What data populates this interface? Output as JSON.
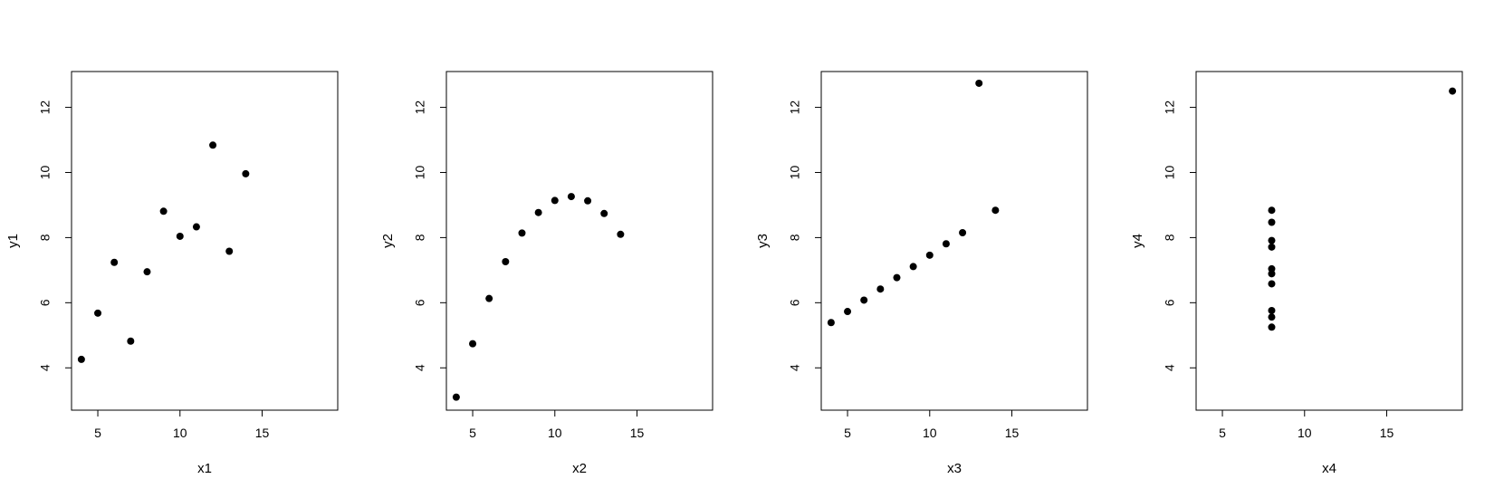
{
  "chart_data": [
    {
      "type": "scatter",
      "xlabel": "x1",
      "ylabel": "y1",
      "xlim": [
        3.4,
        19.6
      ],
      "ylim": [
        2.7,
        13.1
      ],
      "xticks": [
        5,
        10,
        15
      ],
      "yticks": [
        4,
        6,
        8,
        10,
        12
      ],
      "x": [
        10,
        8,
        13,
        9,
        11,
        14,
        6,
        4,
        12,
        7,
        5
      ],
      "y": [
        8.04,
        6.95,
        7.58,
        8.81,
        8.33,
        9.96,
        7.24,
        4.26,
        10.84,
        4.82,
        5.68
      ]
    },
    {
      "type": "scatter",
      "xlabel": "x2",
      "ylabel": "y2",
      "xlim": [
        3.4,
        19.6
      ],
      "ylim": [
        2.7,
        13.1
      ],
      "xticks": [
        5,
        10,
        15
      ],
      "yticks": [
        4,
        6,
        8,
        10,
        12
      ],
      "x": [
        10,
        8,
        13,
        9,
        11,
        14,
        6,
        4,
        12,
        7,
        5
      ],
      "y": [
        9.14,
        8.14,
        8.74,
        8.77,
        9.26,
        8.1,
        6.13,
        3.1,
        9.13,
        7.26,
        4.74
      ]
    },
    {
      "type": "scatter",
      "xlabel": "x3",
      "ylabel": "y3",
      "xlim": [
        3.4,
        19.6
      ],
      "ylim": [
        2.7,
        13.1
      ],
      "xticks": [
        5,
        10,
        15
      ],
      "yticks": [
        4,
        6,
        8,
        10,
        12
      ],
      "x": [
        10,
        8,
        13,
        9,
        11,
        14,
        6,
        4,
        12,
        7,
        5
      ],
      "y": [
        7.46,
        6.77,
        12.74,
        7.11,
        7.81,
        8.84,
        6.08,
        5.39,
        8.15,
        6.42,
        5.73
      ]
    },
    {
      "type": "scatter",
      "xlabel": "x4",
      "ylabel": "y4",
      "xlim": [
        3.4,
        19.6
      ],
      "ylim": [
        2.7,
        13.1
      ],
      "xticks": [
        5,
        10,
        15
      ],
      "yticks": [
        4,
        6,
        8,
        10,
        12
      ],
      "x": [
        8,
        8,
        8,
        8,
        8,
        8,
        8,
        19,
        8,
        8,
        8
      ],
      "y": [
        6.58,
        5.76,
        7.71,
        8.84,
        8.47,
        7.04,
        5.25,
        12.5,
        5.56,
        7.91,
        6.89
      ]
    }
  ]
}
